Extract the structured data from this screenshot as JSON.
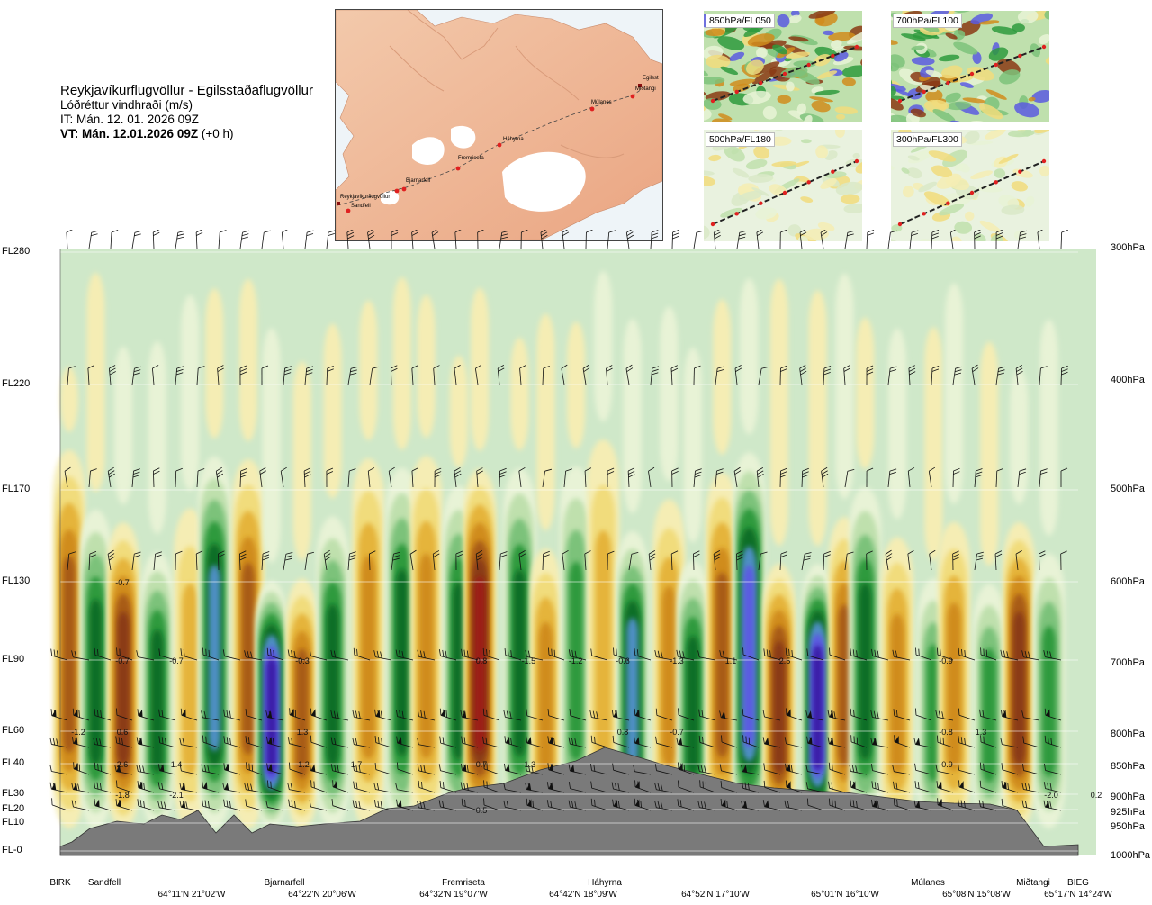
{
  "header": {
    "route": "Reykjavíkurflugvöllur - Egilsstaðaflugvöllur",
    "subtitle": "Lóðréttur vindhraði (m/s)",
    "issue_time": "IT: Mán. 12. 01. 2026 09Z",
    "valid_time_bold": "VT: Mán. 12.01.2026 09Z",
    "valid_time_suffix": "(+0 h)"
  },
  "map": {
    "waypoints": [
      "Reykjavíkurflugvöllur",
      "Sandfell",
      "Bjarnarfell",
      "Fremriseta",
      "Háhyrna",
      "Múlanes",
      "Miðtangi",
      "Egilsst"
    ]
  },
  "panels": [
    {
      "label": "850hPa/FL050"
    },
    {
      "label": "700hPa/FL100"
    },
    {
      "label": "500hPa/FL180"
    },
    {
      "label": "300hPa/FL300"
    }
  ],
  "levels": [
    {
      "fl": "FL280",
      "hpa": "300hPa"
    },
    {
      "fl": "FL220",
      "hpa": "400hPa"
    },
    {
      "fl": "FL170",
      "hpa": "500hPa"
    },
    {
      "fl": "FL130",
      "hpa": "600hPa"
    },
    {
      "fl": "FL90",
      "hpa": "700hPa"
    },
    {
      "fl": "FL60",
      "hpa": "800hPa"
    },
    {
      "fl": "FL40",
      "hpa": "850hPa"
    },
    {
      "fl": "FL30",
      "hpa": "900hPa"
    },
    {
      "fl": "FL20",
      "hpa": "925hPa"
    },
    {
      "fl": "FL10",
      "hpa": "950hPa"
    },
    {
      "fl": "FL-0",
      "hpa": "1000hPa"
    }
  ],
  "locations": [
    "BIRK",
    "Sandfell",
    "Bjarnarfell",
    "Fremriseta",
    "Háhyrna",
    "Múlanes",
    "Miðtangi",
    "BIEG"
  ],
  "coords": [
    "64°11'N 21°02'W",
    "64°22'N 20°06'W",
    "64°32'N 19°07'W",
    "64°42'N 18°09'W",
    "64°52'N 17°10'W",
    "65°01'N 16°10'W",
    "65°08'N 15°08'W",
    "65°17'N 14°24'W"
  ],
  "chart_data": {
    "type": "heatmap",
    "title": "Lóðréttur vindhraði (m/s)",
    "xlabel": "",
    "ylabel": "",
    "y_levels_hpa": [
      300,
      400,
      500,
      600,
      700,
      800,
      850,
      900,
      925,
      950,
      1000
    ],
    "y_levels_fl": [
      "FL280",
      "FL220",
      "FL170",
      "FL130",
      "FL90",
      "FL60",
      "FL40",
      "FL30",
      "FL20",
      "FL10",
      "FL-0"
    ],
    "x_locations": [
      "BIRK",
      "Sandfell",
      "Bjarnarfell",
      "Fremriseta",
      "Háhyrna",
      "Múlanes",
      "Miðtangi",
      "BIEG"
    ],
    "value_labels": [
      {
        "text": "-0.7",
        "loc": "Sandfell",
        "hpa": 600
      },
      {
        "text": "-0.7",
        "loc": "Sandfell",
        "hpa": 700
      },
      {
        "text": "-0.7",
        "loc": "Sandfell",
        "hpa": 700
      },
      {
        "text": "-1.2",
        "loc": "BIRK",
        "hpa": 800
      },
      {
        "text": "2.6",
        "loc": "Sandfell",
        "hpa": 850
      },
      {
        "text": "1.4",
        "loc": "Sandfell",
        "hpa": 850
      },
      {
        "text": "0.6",
        "loc": "Sandfell",
        "hpa": 800
      },
      {
        "text": "-1.8",
        "loc": "Sandfell",
        "hpa": 900
      },
      {
        "text": "-2.1",
        "loc": "Sandfell",
        "hpa": 900
      },
      {
        "text": "-1.2",
        "loc": "Bjarnarfell",
        "hpa": 850
      },
      {
        "text": "1.7",
        "loc": "Bjarnarfell",
        "hpa": 850
      },
      {
        "text": "1.3",
        "loc": "Bjarnarfell",
        "hpa": 800
      },
      {
        "text": "-0.3",
        "loc": "Bjarnarfell",
        "hpa": 700
      },
      {
        "text": "0.8",
        "loc": "Fremriseta",
        "hpa": 700
      },
      {
        "text": "0.7",
        "loc": "Fremriseta",
        "hpa": 850
      },
      {
        "text": "0.5",
        "loc": "Fremriseta",
        "hpa": 925
      },
      {
        "text": "-1.3",
        "loc": "Fremriseta",
        "hpa": 850
      },
      {
        "text": "-1.5",
        "loc": "Fremriseta",
        "hpa": 700
      },
      {
        "text": "-1.2",
        "loc": "Fremriseta",
        "hpa": 700
      },
      {
        "text": "-0.6",
        "loc": "Háhyrna",
        "hpa": 700
      },
      {
        "text": "-1.3",
        "loc": "Háhyrna",
        "hpa": 700
      },
      {
        "text": "1.1",
        "loc": "Háhyrna",
        "hpa": 700
      },
      {
        "text": "0.8",
        "loc": "Háhyrna",
        "hpa": 800
      },
      {
        "text": "-0.7",
        "loc": "Háhyrna",
        "hpa": 800
      },
      {
        "text": "2.5",
        "loc": "Háhyrna",
        "hpa": 700
      },
      {
        "text": "-0.9",
        "loc": "Múlanes",
        "hpa": 700
      },
      {
        "text": "-0.8",
        "loc": "Múlanes",
        "hpa": 800
      },
      {
        "text": "-0.9",
        "loc": "Múlanes",
        "hpa": 850
      },
      {
        "text": "1.3",
        "loc": "Múlanes",
        "hpa": 800
      },
      {
        "text": "-2.0",
        "loc": "Miðtangi",
        "hpa": 900
      },
      {
        "text": "0.2",
        "loc": "BIEG",
        "hpa": 900
      }
    ],
    "grid": true,
    "legend": "none"
  }
}
